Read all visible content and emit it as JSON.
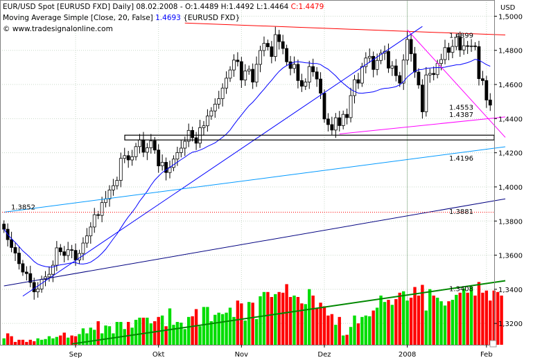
{
  "header": {
    "line1_prefix": "EUR/USD Spot [EURUSD FXD]  Daily] 08.02.2008 - ",
    "open_label": "O:1.4489",
    "high_label": " H:1.4492",
    "low_label": " L:1.4464",
    "close_label": " C:1.4479",
    "line2_prefix": "Moving Average Simple [Close, 20, False] ",
    "line2_value": "1.4693",
    "line2_suffix": " {EURUSD FXD}",
    "line3": "© www.tradesignalonline.com",
    "close_color": "#ff0000",
    "ma_value_color": "#0000ff"
  },
  "chart_data": {
    "type": "candlestick",
    "currency_label": "USD",
    "y_ticks": [
      "1,5000",
      "1,4800",
      "1,4600",
      "1,4400",
      "1,4200",
      "1,4000",
      "1,3800",
      "1,3600",
      "1,3400",
      "1,3200"
    ],
    "y_tick_values": [
      1.5,
      1.48,
      1.46,
      1.44,
      1.42,
      1.4,
      1.38,
      1.36,
      1.34,
      1.32
    ],
    "ylim": [
      1.3075,
      1.5095
    ],
    "x_labels": [
      "Sep",
      "Okt",
      "Nov",
      "Dez",
      "2008",
      "Feb"
    ],
    "x_label_index": [
      19,
      41,
      63,
      85,
      107,
      128
    ],
    "grid": "dotted",
    "candle_colors": {
      "up": "#000000",
      "down": "#000000"
    },
    "closes": [
      1.3752,
      1.3691,
      1.3645,
      1.3612,
      1.355,
      1.3501,
      1.3492,
      1.344,
      1.3385,
      1.3402,
      1.3458,
      1.3473,
      1.3488,
      1.3541,
      1.3643,
      1.362,
      1.3598,
      1.3632,
      1.3628,
      1.3572,
      1.361,
      1.3671,
      1.3713,
      1.3765,
      1.3837,
      1.3833,
      1.3908,
      1.393,
      1.3982,
      1.4007,
      1.4038,
      1.4167,
      1.4183,
      1.4158,
      1.4177,
      1.4236,
      1.4276,
      1.4203,
      1.4229,
      1.427,
      1.4216,
      1.4123,
      1.4144,
      1.4084,
      1.4114,
      1.4163,
      1.4201,
      1.4227,
      1.4267,
      1.4331,
      1.4288,
      1.4256,
      1.4347,
      1.4358,
      1.4415,
      1.4445,
      1.4485,
      1.4517,
      1.4579,
      1.4637,
      1.4685,
      1.4743,
      1.4734,
      1.4626,
      1.4679,
      1.4689,
      1.4614,
      1.4718,
      1.4799,
      1.4841,
      1.4821,
      1.4764,
      1.4892,
      1.4851,
      1.4811,
      1.4733,
      1.4694,
      1.4718,
      1.4623,
      1.459,
      1.4614,
      1.4705,
      1.4674,
      1.4632,
      1.4549,
      1.4398,
      1.4365,
      1.4333,
      1.4405,
      1.4359,
      1.4425,
      1.4406,
      1.4535,
      1.4628,
      1.4608,
      1.4705,
      1.4755,
      1.4765,
      1.4688,
      1.4741,
      1.4783,
      1.4794,
      1.4696,
      1.4709,
      1.4652,
      1.4608,
      1.4743,
      1.4864,
      1.478,
      1.4673,
      1.4597,
      1.444,
      1.4656,
      1.4665,
      1.4658,
      1.4723,
      1.4746,
      1.4816,
      1.4788,
      1.4823,
      1.4876,
      1.4802,
      1.4827,
      1.4825,
      1.4826,
      1.4822,
      1.4634,
      1.4623,
      1.4509,
      1.4479
    ],
    "close_color": "#ff0000",
    "moving_average": {
      "name": "Moving Average Simple [Close, 20, False]",
      "color": "#0000ff",
      "last_value": 1.4693
    },
    "lines": [
      {
        "color": "#ff0000",
        "start": [
          48,
          1.496
        ],
        "end": [
          133,
          1.489
        ],
        "label": "1.4899"
      },
      {
        "color": "#ff00ff",
        "start": [
          89,
          1.431
        ],
        "end": [
          133,
          1.441
        ],
        "label": "1.4387"
      },
      {
        "color": "#ff00ff",
        "start": [
          107,
          1.492
        ],
        "end": [
          133,
          1.429
        ],
        "label": "1.4553"
      },
      {
        "color": "#0000ff",
        "start": [
          5,
          1.336
        ],
        "end": [
          111,
          1.494
        ],
        "label": ""
      },
      {
        "color": "#0099ff",
        "start": [
          0,
          1.3852
        ],
        "end": [
          133,
          1.4235
        ],
        "label": "1.4196"
      },
      {
        "color": "#000080",
        "start": [
          0,
          1.342
        ],
        "end": [
          133,
          1.393
        ],
        "label": "1.3881"
      },
      {
        "color": "#008800",
        "start": [
          18,
          1.308
        ],
        "end": [
          133,
          1.345
        ],
        "label": "1.3408"
      }
    ],
    "horizontal_levels": [
      {
        "value": 1.3852,
        "color": "#ff0000",
        "label": "1.3852"
      }
    ],
    "support_band": [
      1.4275,
      1.4303
    ],
    "volume_colors": {
      "up": "#00dd00",
      "down": "#ff0000"
    },
    "volume": [
      0.09,
      0.16,
      0.12,
      0.04,
      0.07,
      0.07,
      0.04,
      0.07,
      0.05,
      0.09,
      0.07,
      0.08,
      0.12,
      0.09,
      0.11,
      0.13,
      0.17,
      0.1,
      0.13,
      0.12,
      0.15,
      0.23,
      0.16,
      0.24,
      0.21,
      0.33,
      0.16,
      0.27,
      0.26,
      0.16,
      0.32,
      0.32,
      0.22,
      0.32,
      0.24,
      0.35,
      0.38,
      0.38,
      0.38,
      0.3,
      0.33,
      0.39,
      0.41,
      0.26,
      0.51,
      0.28,
      0.32,
      0.31,
      0.22,
      0.39,
      0.4,
      0.5,
      0.26,
      0.53,
      0.53,
      0.33,
      0.42,
      0.45,
      0.43,
      0.45,
      0.52,
      0.39,
      0.62,
      0.58,
      0.34,
      0.6,
      0.59,
      0.36,
      0.68,
      0.74,
      0.74,
      0.67,
      0.71,
      0.74,
      0.73,
      0.85,
      0.67,
      0.69,
      0.67,
      0.58,
      0.57,
      0.78,
      0.69,
      0.51,
      0.59,
      0.54,
      0.41,
      0.43,
      0.28,
      0.39,
      0.13,
      0.14,
      0.25,
      0.41,
      0.3,
      0.39,
      0.41,
      0.4,
      0.48,
      0.52,
      0.69,
      0.6,
      0.63,
      0.56,
      0.64,
      0.73,
      0.75,
      0.62,
      0.66,
      0.81,
      0.69,
      0.84,
      0.48,
      0.78,
      0.69,
      0.66,
      0.61,
      0.55,
      0.61,
      0.63,
      0.7,
      0.73,
      0.79,
      0.73,
      0.81,
      0.69,
      0.88,
      0.73,
      0.76,
      0.62,
      0.76,
      0.74,
      0.69
    ]
  }
}
